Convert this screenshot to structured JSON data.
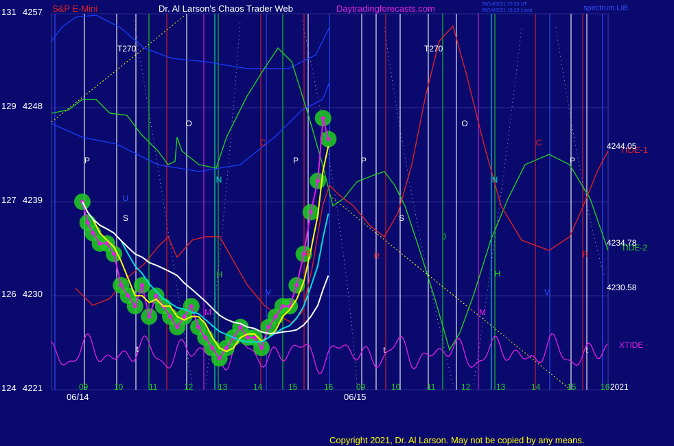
{
  "header": {
    "symbol": "S&P E-Mini",
    "author": "Dr. Al Larson's Chaos Trader Web",
    "site": "Daytradingforecasts.com",
    "stamp1": "06/14/2021 20:20 UT",
    "stamp2": "06/14/2021 16:20 Local",
    "engine": "spectrum.LIB"
  },
  "copyright": "Copyright 2021, Dr. Al Larson. May not be copied by any means.",
  "colors": {
    "background": "#0a0a6e",
    "price_glow": "#22cc22",
    "tide1": "#e02020",
    "tide2": "#22cc22",
    "xtide": "#e020e0",
    "fast_avg": "#ffff00",
    "mid_avg": "#00dddd",
    "slow_avg": "#ffffff",
    "blue_band": "#1a3cff"
  },
  "chart_data": {
    "type": "line",
    "y_left_outer": [
      "131",
      "129",
      "127",
      "126",
      "124"
    ],
    "y_left_inner": [
      "4257",
      "4248",
      "4239",
      "4230",
      "4221"
    ],
    "ylim": [
      4221,
      4257
    ],
    "hour_ticks": [
      "09",
      "10",
      "11",
      "12",
      "13",
      "14",
      "15",
      "16",
      "09",
      "10",
      "11",
      "12",
      "13",
      "14",
      "15",
      "16"
    ],
    "date_labels": [
      "06/14",
      "06/15"
    ],
    "year_label": "2021",
    "right_values": [
      "4244.05",
      "4234.78",
      "4230.58"
    ],
    "series_labels": {
      "tide1": "TIDE-1",
      "tide2": "TIDE-2",
      "xtide": "XTIDE"
    },
    "t270": [
      "T270",
      "T270"
    ],
    "markers": [
      {
        "text": "P",
        "c": "#ffffff"
      },
      {
        "text": "U",
        "c": "#3050ff"
      },
      {
        "text": "S",
        "c": "#ffffff"
      },
      {
        "text": "O",
        "c": "#ffffff"
      },
      {
        "text": "N",
        "c": "#00dddd"
      },
      {
        "text": "H",
        "c": "#22cc22"
      },
      {
        "text": "C",
        "c": "#e02020"
      },
      {
        "text": "P",
        "c": "#ffffff"
      },
      {
        "text": "M",
        "c": "#e020e0"
      },
      {
        "text": "V",
        "c": "#3050ff"
      },
      {
        "text": "t",
        "c": "#ffffff"
      },
      {
        "text": "R",
        "c": "#e02020"
      },
      {
        "text": "P",
        "c": "#ffffff"
      },
      {
        "text": "S",
        "c": "#ffffff"
      },
      {
        "text": "R",
        "c": "#e02020"
      },
      {
        "text": "t",
        "c": "#ffffff"
      },
      {
        "text": "O",
        "c": "#ffffff"
      },
      {
        "text": "J",
        "c": "#22cc22"
      },
      {
        "text": "N",
        "c": "#00dddd"
      },
      {
        "text": "H",
        "c": "#22cc22"
      },
      {
        "text": "M",
        "c": "#e020e0"
      },
      {
        "text": "C",
        "c": "#e02020"
      },
      {
        "text": "V",
        "c": "#3050ff"
      },
      {
        "text": "P",
        "c": "#ffffff"
      },
      {
        "text": "R",
        "c": "#e02020"
      },
      {
        "text": "t",
        "c": "#ffffff"
      }
    ],
    "price": {
      "name": "",
      "x_hours": [
        9.0,
        9.15,
        9.3,
        9.5,
        9.7,
        9.9,
        10.1,
        10.3,
        10.5,
        10.7,
        10.9,
        11.1,
        11.3,
        11.5,
        11.7,
        11.9,
        12.1,
        12.3,
        12.5,
        12.7,
        12.9,
        13.1,
        13.3,
        13.5,
        13.7,
        13.9,
        14.1,
        14.3,
        14.5,
        14.7,
        14.9,
        15.1,
        15.3,
        15.5,
        15.7,
        15.85,
        16.0
      ],
      "y": [
        4239,
        4237,
        4236,
        4235,
        4235,
        4234,
        4231,
        4230,
        4229,
        4231,
        4228,
        4230,
        4229,
        4228,
        4227,
        4228,
        4229,
        4227,
        4226,
        4225,
        4224,
        4225,
        4226,
        4227,
        4226,
        4226,
        4225,
        4227,
        4228,
        4229,
        4229,
        4231,
        4234,
        4238,
        4241,
        4247,
        4245
      ]
    }
  }
}
